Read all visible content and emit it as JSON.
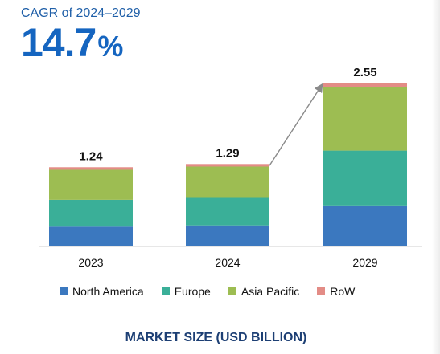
{
  "cagr": {
    "label": "CAGR of 2024–2029",
    "value": "14.7",
    "unit": "%"
  },
  "footer": "MARKET SIZE (USD BILLION)",
  "colors": {
    "north_america": "#3b78bf",
    "europe": "#3aaf98",
    "asia_pacific": "#9dbd52",
    "row": "#e38c86",
    "cagr_text": "#1565c0",
    "footer_text": "#1d3f74"
  },
  "chart_data": {
    "type": "bar",
    "stacked": true,
    "categories": [
      "2023",
      "2024",
      "2029"
    ],
    "totals": [
      1.24,
      1.29,
      2.55
    ],
    "total_labels": [
      "1.24",
      "1.29",
      "2.55"
    ],
    "series": [
      {
        "name": "North America",
        "values": [
          0.31,
          0.33,
          0.63
        ]
      },
      {
        "name": "Europe",
        "values": [
          0.42,
          0.43,
          0.87
        ]
      },
      {
        "name": "Asia Pacific",
        "values": [
          0.47,
          0.49,
          0.99
        ]
      },
      {
        "name": "RoW",
        "values": [
          0.04,
          0.04,
          0.06
        ]
      }
    ],
    "ylim": [
      0,
      2.55
    ],
    "legend_position": "bottom",
    "grid": false,
    "annotation": "arrow from 2024 bar to 2029 bar"
  }
}
